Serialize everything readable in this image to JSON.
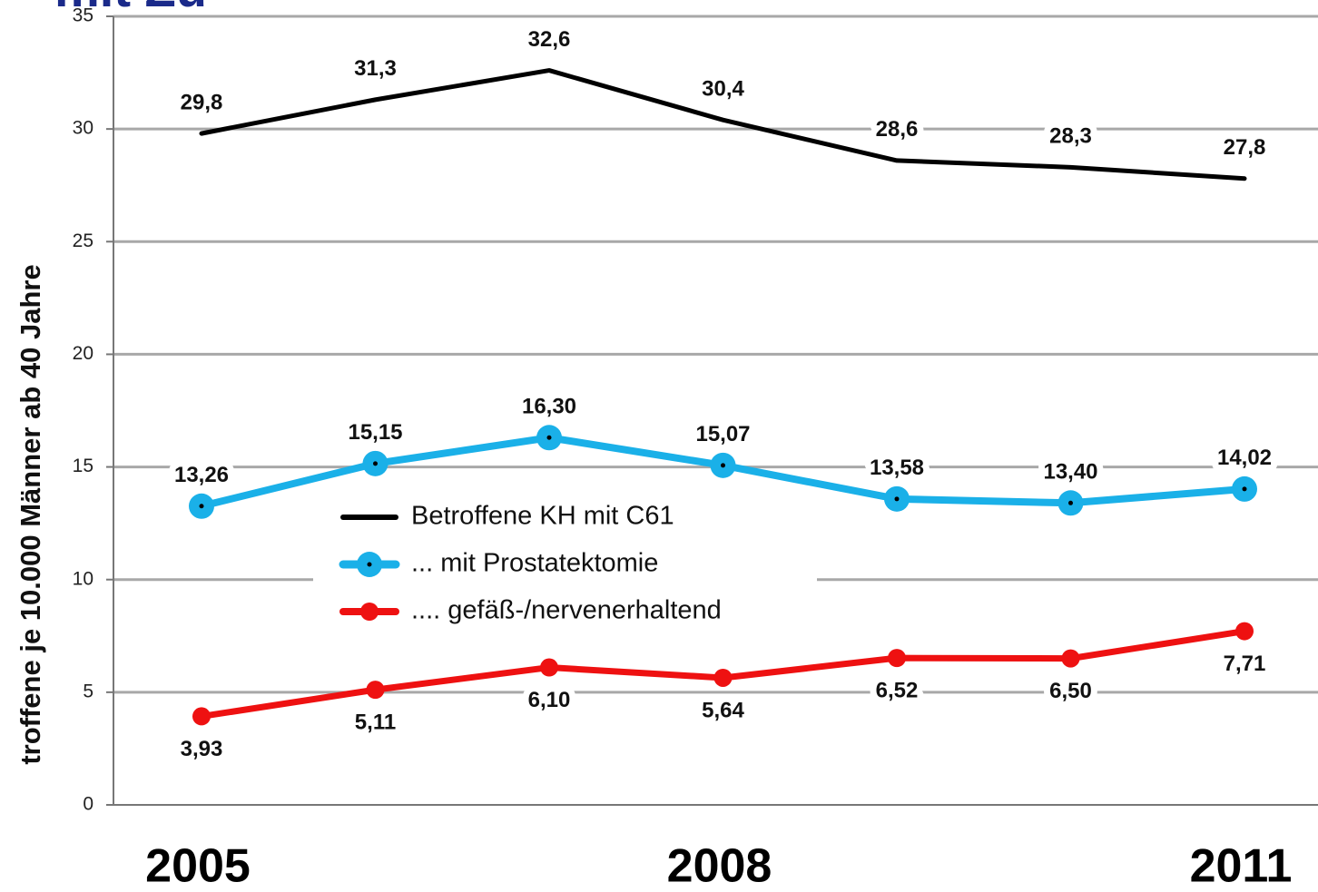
{
  "chart_data": {
    "type": "line",
    "title": "mit Zu",
    "ylabel": "troffene je 10.000 Männer ab 40 Jahre",
    "categories": [
      "2005",
      null,
      null,
      "2008",
      null,
      null,
      "2011"
    ],
    "ylim": [
      0,
      35
    ],
    "yticks": [
      0,
      5,
      10,
      15,
      20,
      25,
      30,
      35
    ],
    "grid": true,
    "legend": "center",
    "series": [
      {
        "name": "Betroffene KH mit C61",
        "color": "#000000",
        "markers": false,
        "label_position": "above",
        "values": [
          29.8,
          31.3,
          32.6,
          30.4,
          28.6,
          28.3,
          27.8
        ],
        "value_labels": [
          "29,8",
          "31,3",
          "32,6",
          "30,4",
          "28,6",
          "28,3",
          "27,8"
        ]
      },
      {
        "name": "... mit Prostatektomie",
        "color": "#1ab0e8",
        "markers": true,
        "label_position": "above",
        "values": [
          13.26,
          15.15,
          16.3,
          15.07,
          13.58,
          13.4,
          14.02
        ],
        "value_labels": [
          "13,26",
          "15,15",
          "16,30",
          "15,07",
          "13,58",
          "13,40",
          "14,02"
        ]
      },
      {
        "name": ".... gefäß-/nervenerhaltend",
        "color": "#ee1111",
        "markers": true,
        "label_position": "below",
        "values": [
          3.93,
          5.11,
          6.1,
          5.64,
          6.52,
          6.5,
          7.71
        ],
        "value_labels": [
          "3,93",
          "5,11",
          "6,10",
          "5,64",
          "6,52",
          "6,50",
          "7,71"
        ]
      }
    ]
  }
}
